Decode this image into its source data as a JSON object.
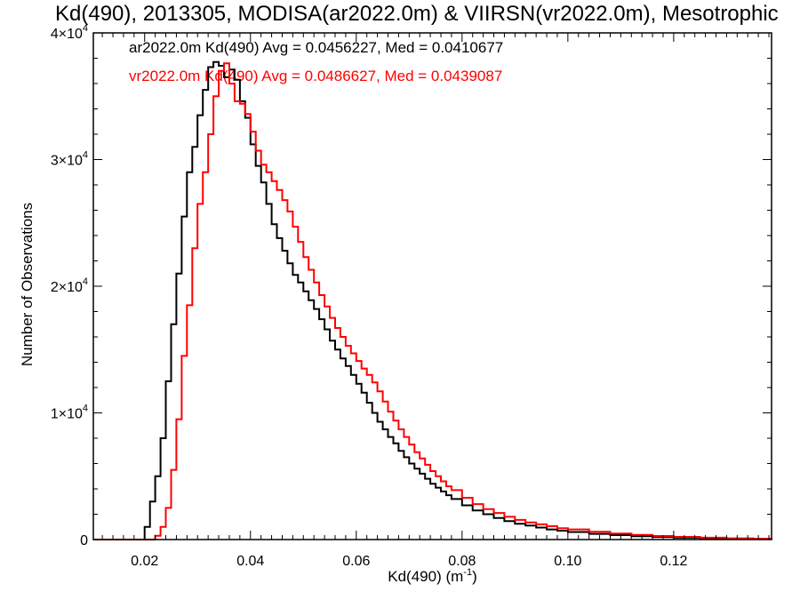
{
  "chart_data": {
    "type": "line",
    "title": "Kd(490), 2013305, MODISA(ar2022.0m) & VIIRSN(vr2022.0m), Mesotrophic",
    "xlabel_main": "Kd(490) (m",
    "xlabel_sup": "-1",
    "xlabel_close": ")",
    "ylabel": "Number of Observations",
    "xlim": [
      0.0103,
      0.1385
    ],
    "ylim": [
      0,
      40000
    ],
    "x_ticks": [
      0.02,
      0.04,
      0.06,
      0.08,
      0.1,
      0.12
    ],
    "x_tick_labels": [
      "0.02",
      "0.04",
      "0.06",
      "0.08",
      "0.10",
      "0.12"
    ],
    "y_ticks": [
      0,
      10000,
      20000,
      30000,
      40000
    ],
    "y_tick_labels": [
      {
        "base": "0",
        "exp": ""
      },
      {
        "base": "1×10",
        "exp": "4"
      },
      {
        "base": "2×10",
        "exp": "4"
      },
      {
        "base": "3×10",
        "exp": "4"
      },
      {
        "base": "4×10",
        "exp": "4"
      }
    ],
    "grid": false,
    "legend_position": "top-left",
    "series": [
      {
        "name": "ar2022.0m",
        "label": "ar2022.0m Kd(490) Avg = 0.0456227, Med = 0.0410677",
        "color": "#000000",
        "points": [
          [
            0.019,
            0
          ],
          [
            0.02,
            1000
          ],
          [
            0.021,
            3000
          ],
          [
            0.022,
            5000
          ],
          [
            0.023,
            8000
          ],
          [
            0.024,
            12500
          ],
          [
            0.025,
            17000
          ],
          [
            0.026,
            21000
          ],
          [
            0.027,
            25500
          ],
          [
            0.028,
            29000
          ],
          [
            0.029,
            31000
          ],
          [
            0.03,
            33500
          ],
          [
            0.031,
            35500
          ],
          [
            0.032,
            37300
          ],
          [
            0.033,
            37700
          ],
          [
            0.034,
            37400
          ],
          [
            0.035,
            36500
          ],
          [
            0.036,
            37100
          ],
          [
            0.037,
            36300
          ],
          [
            0.038,
            34600
          ],
          [
            0.039,
            33300
          ],
          [
            0.04,
            31200
          ],
          [
            0.041,
            29500
          ],
          [
            0.042,
            28200
          ],
          [
            0.043,
            26500
          ],
          [
            0.044,
            24900
          ],
          [
            0.045,
            23800
          ],
          [
            0.046,
            22800
          ],
          [
            0.047,
            21800
          ],
          [
            0.048,
            20900
          ],
          [
            0.049,
            20300
          ],
          [
            0.05,
            19600
          ],
          [
            0.051,
            18900
          ],
          [
            0.052,
            18200
          ],
          [
            0.053,
            17400
          ],
          [
            0.054,
            16600
          ],
          [
            0.055,
            15700
          ],
          [
            0.056,
            15000
          ],
          [
            0.057,
            14300
          ],
          [
            0.058,
            13700
          ],
          [
            0.059,
            13000
          ],
          [
            0.06,
            12300
          ],
          [
            0.061,
            11600
          ],
          [
            0.062,
            10800
          ],
          [
            0.063,
            10000
          ],
          [
            0.064,
            9300
          ],
          [
            0.065,
            8700
          ],
          [
            0.066,
            8100
          ],
          [
            0.067,
            7600
          ],
          [
            0.068,
            7000
          ],
          [
            0.069,
            6500
          ],
          [
            0.07,
            6000
          ],
          [
            0.071,
            5600
          ],
          [
            0.072,
            5200
          ],
          [
            0.073,
            4800
          ],
          [
            0.074,
            4400
          ],
          [
            0.075,
            4100
          ],
          [
            0.076,
            3800
          ],
          [
            0.077,
            3500
          ],
          [
            0.078,
            3200
          ],
          [
            0.08,
            2700
          ],
          [
            0.082,
            2300
          ],
          [
            0.084,
            2000
          ],
          [
            0.086,
            1700
          ],
          [
            0.088,
            1450
          ],
          [
            0.09,
            1250
          ],
          [
            0.092,
            1100
          ],
          [
            0.094,
            950
          ],
          [
            0.096,
            800
          ],
          [
            0.098,
            700
          ],
          [
            0.1,
            600
          ],
          [
            0.104,
            450
          ],
          [
            0.108,
            350
          ],
          [
            0.112,
            260
          ],
          [
            0.116,
            200
          ],
          [
            0.12,
            150
          ],
          [
            0.125,
            100
          ],
          [
            0.13,
            70
          ],
          [
            0.135,
            50
          ],
          [
            0.1385,
            40
          ]
        ]
      },
      {
        "name": "vr2022.0m",
        "label": "vr2022.0m Kd(490) Avg = 0.0486627, Med = 0.0439087",
        "color": "#ff0000",
        "points": [
          [
            0.021,
            0
          ],
          [
            0.022,
            300
          ],
          [
            0.023,
            1000
          ],
          [
            0.024,
            2500
          ],
          [
            0.025,
            5500
          ],
          [
            0.026,
            9500
          ],
          [
            0.027,
            14500
          ],
          [
            0.028,
            18500
          ],
          [
            0.029,
            23000
          ],
          [
            0.03,
            26500
          ],
          [
            0.031,
            29000
          ],
          [
            0.032,
            32000
          ],
          [
            0.033,
            35000
          ],
          [
            0.034,
            37000
          ],
          [
            0.035,
            37600
          ],
          [
            0.036,
            36000
          ],
          [
            0.037,
            34600
          ],
          [
            0.038,
            34400
          ],
          [
            0.039,
            33600
          ],
          [
            0.04,
            32200
          ],
          [
            0.041,
            30700
          ],
          [
            0.042,
            29600
          ],
          [
            0.043,
            29000
          ],
          [
            0.044,
            28300
          ],
          [
            0.045,
            27600
          ],
          [
            0.046,
            26800
          ],
          [
            0.047,
            25900
          ],
          [
            0.048,
            24700
          ],
          [
            0.049,
            23500
          ],
          [
            0.05,
            22300
          ],
          [
            0.051,
            21300
          ],
          [
            0.052,
            20300
          ],
          [
            0.053,
            19300
          ],
          [
            0.054,
            18400
          ],
          [
            0.055,
            17500
          ],
          [
            0.056,
            16700
          ],
          [
            0.057,
            16000
          ],
          [
            0.058,
            15300
          ],
          [
            0.059,
            14700
          ],
          [
            0.06,
            14100
          ],
          [
            0.061,
            13500
          ],
          [
            0.062,
            13000
          ],
          [
            0.063,
            12400
          ],
          [
            0.064,
            11700
          ],
          [
            0.065,
            10900
          ],
          [
            0.066,
            10100
          ],
          [
            0.067,
            9400
          ],
          [
            0.068,
            8700
          ],
          [
            0.069,
            8100
          ],
          [
            0.07,
            7500
          ],
          [
            0.071,
            6900
          ],
          [
            0.072,
            6400
          ],
          [
            0.073,
            5900
          ],
          [
            0.074,
            5400
          ],
          [
            0.075,
            5000
          ],
          [
            0.076,
            4600
          ],
          [
            0.077,
            4200
          ],
          [
            0.078,
            3900
          ],
          [
            0.08,
            3300
          ],
          [
            0.082,
            2800
          ],
          [
            0.084,
            2400
          ],
          [
            0.086,
            2100
          ],
          [
            0.088,
            1800
          ],
          [
            0.09,
            1550
          ],
          [
            0.092,
            1350
          ],
          [
            0.094,
            1200
          ],
          [
            0.096,
            1050
          ],
          [
            0.098,
            900
          ],
          [
            0.1,
            800
          ],
          [
            0.104,
            620
          ],
          [
            0.108,
            480
          ],
          [
            0.112,
            370
          ],
          [
            0.116,
            280
          ],
          [
            0.12,
            210
          ],
          [
            0.125,
            150
          ],
          [
            0.13,
            100
          ],
          [
            0.135,
            70
          ],
          [
            0.1385,
            55
          ]
        ]
      }
    ]
  }
}
